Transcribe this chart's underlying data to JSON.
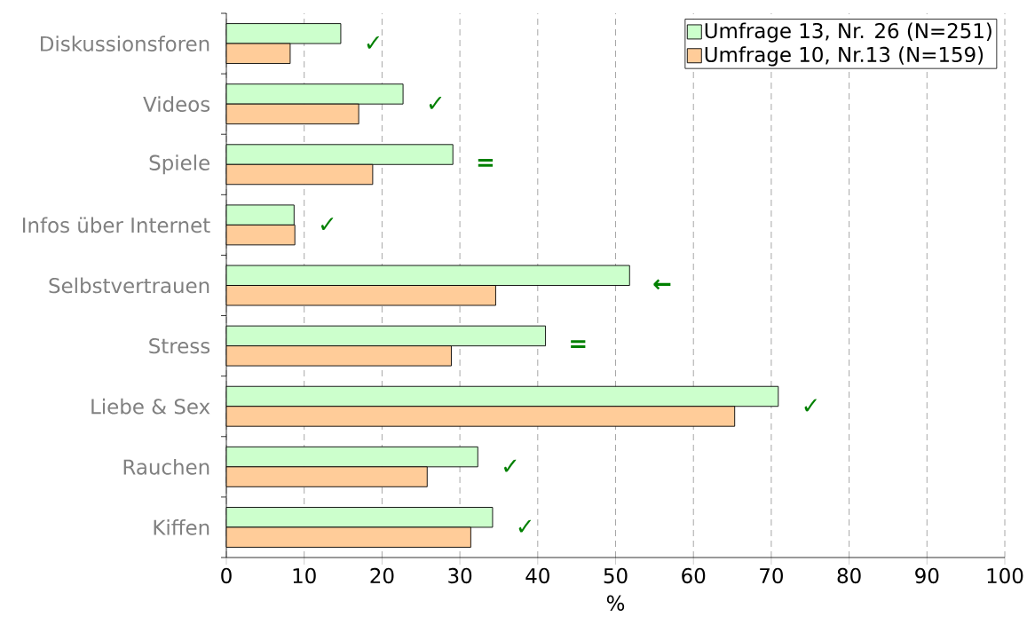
{
  "chart_data": {
    "type": "bar",
    "orientation": "horizontal",
    "categories": [
      "Diskussionsforen",
      "Videos",
      "Spiele",
      "Infos über Internet",
      "Selbstvertrauen",
      "Stress",
      "Liebe & Sex",
      "Rauchen",
      "Kiffen"
    ],
    "series": [
      {
        "name": "Umfrage 13, Nr. 26 (N=251)",
        "color": "#ccffcc",
        "values": [
          14.7,
          22.7,
          29.1,
          8.7,
          51.8,
          41.0,
          70.9,
          32.3,
          34.2
        ]
      },
      {
        "name": "Umfrage 10, Nr.13 (N=159)",
        "color": "#ffcc99",
        "values": [
          8.2,
          17.0,
          18.8,
          8.8,
          34.6,
          28.9,
          65.3,
          25.8,
          31.4
        ]
      }
    ],
    "xlabel": "%",
    "xlim": [
      0,
      100
    ],
    "xticks": [
      0,
      10,
      20,
      30,
      40,
      50,
      60,
      70,
      80,
      90,
      100
    ],
    "grid": "x",
    "legend": "top right",
    "annotations": [
      "✓",
      "✓",
      "=",
      "✓",
      "←",
      "=",
      "✓",
      "✓",
      "✓"
    ]
  }
}
